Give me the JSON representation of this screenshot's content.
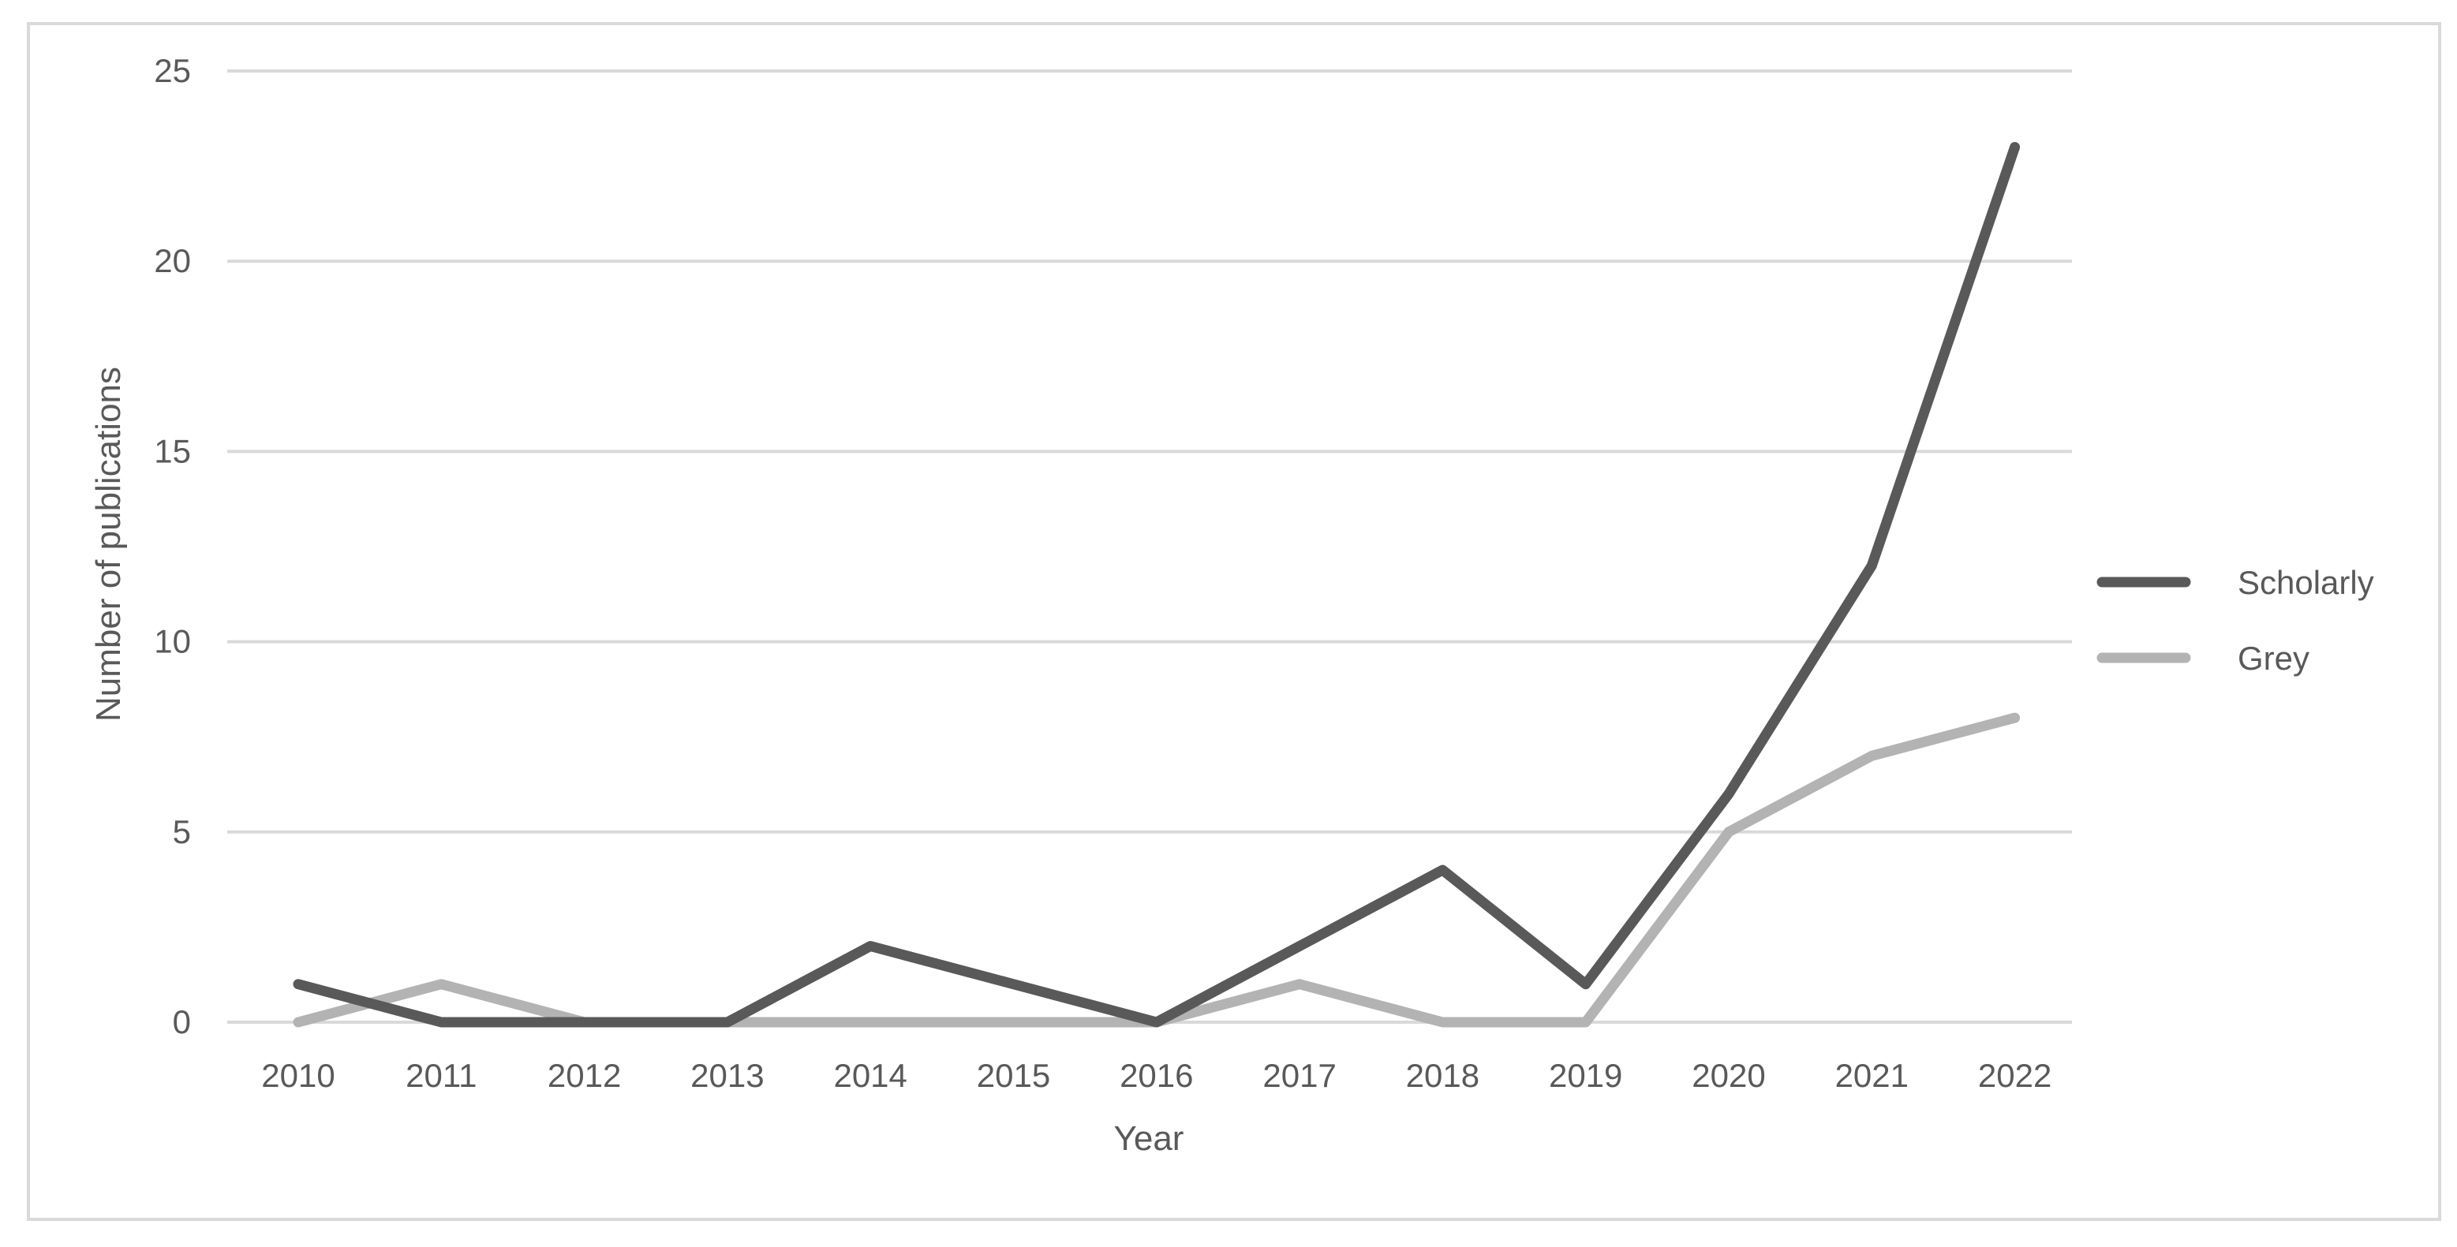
{
  "chart_data": {
    "type": "line",
    "title": "",
    "xlabel": "Year",
    "ylabel": "Number of publications",
    "categories": [
      "2010",
      "2011",
      "2012",
      "2013",
      "2014",
      "2015",
      "2016",
      "2017",
      "2018",
      "2019",
      "2020",
      "2021",
      "2022"
    ],
    "ylim": [
      0,
      25
    ],
    "yticks": [
      "0",
      "5",
      "10",
      "15",
      "20",
      "25"
    ],
    "grid": true,
    "legend_position": "right",
    "series": [
      {
        "name": "Scholarly",
        "color": "#595959",
        "values": [
          1,
          0,
          0,
          0,
          2,
          1,
          0,
          2,
          4,
          1,
          6,
          12,
          23
        ]
      },
      {
        "name": "Grey",
        "color": "#b3b3b3",
        "values": [
          0,
          1,
          0,
          0,
          0,
          0,
          0,
          1,
          0,
          0,
          5,
          7,
          8
        ]
      }
    ]
  }
}
